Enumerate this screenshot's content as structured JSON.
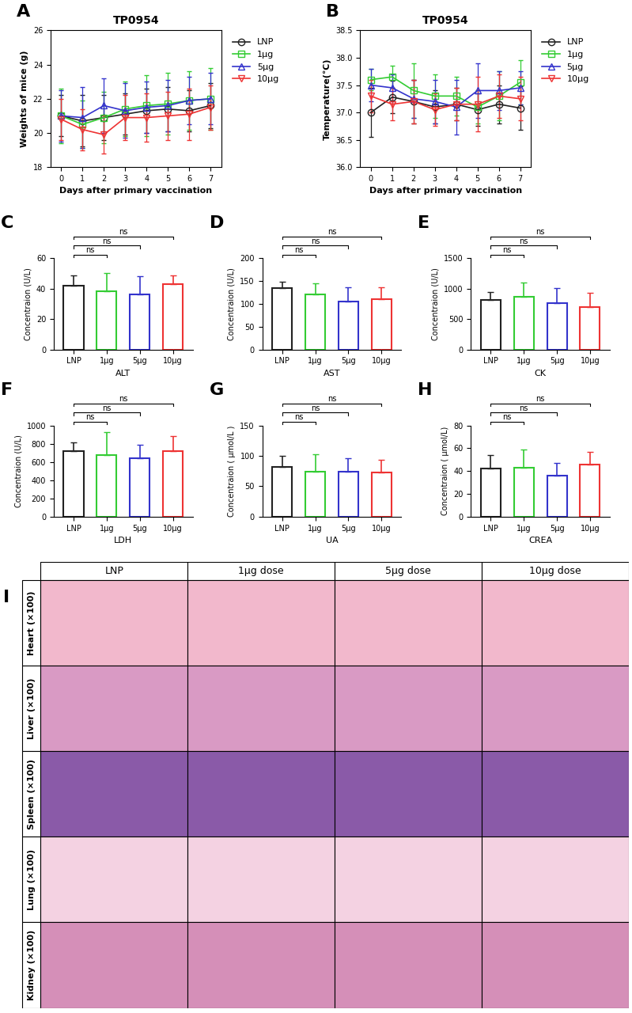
{
  "chart_data": [
    {
      "type": "line",
      "panel": "A",
      "title": "TP0954",
      "x_label": "Days after primary vaccination",
      "y_label": "Weights of mice (g)",
      "x": [
        0,
        1,
        2,
        3,
        4,
        5,
        6,
        7
      ],
      "xlim": [
        -0.5,
        7.5
      ],
      "xticks": [
        0,
        1,
        2,
        3,
        4,
        5,
        6,
        7
      ],
      "ylim": [
        18,
        26
      ],
      "yticks": [
        18,
        20,
        22,
        24,
        26
      ],
      "legend": "upper left",
      "series": [
        {
          "name": "LNP",
          "color": "#222222",
          "marker": "o",
          "values": [
            21.0,
            20.7,
            20.9,
            21.1,
            21.3,
            21.4,
            21.3,
            21.6
          ],
          "errors": [
            1.2,
            1.5,
            1.3,
            1.2,
            1.3,
            1.3,
            1.2,
            1.3
          ]
        },
        {
          "name": "1μg",
          "color": "#33cc33",
          "marker": "s",
          "values": [
            21.0,
            20.5,
            20.9,
            21.4,
            21.6,
            21.7,
            21.9,
            22.0
          ],
          "errors": [
            1.6,
            1.4,
            1.5,
            1.6,
            1.8,
            1.8,
            1.7,
            1.8
          ]
        },
        {
          "name": "5μg",
          "color": "#3333cc",
          "marker": "^",
          "values": [
            21.0,
            20.9,
            21.6,
            21.3,
            21.5,
            21.6,
            21.9,
            22.0
          ],
          "errors": [
            1.5,
            1.8,
            1.6,
            1.6,
            1.5,
            1.5,
            1.4,
            1.5
          ]
        },
        {
          "name": "10μg",
          "color": "#ee3333",
          "marker": "v",
          "values": [
            20.8,
            20.2,
            19.9,
            20.9,
            20.9,
            21.0,
            21.1,
            21.5
          ],
          "errors": [
            1.2,
            1.2,
            1.1,
            1.3,
            1.4,
            1.4,
            1.5,
            1.3
          ]
        }
      ]
    },
    {
      "type": "line",
      "panel": "B",
      "title": "TP0954",
      "x_label": "Days after primary vaccination",
      "y_label": "Temperature(℃)",
      "x": [
        0,
        1,
        2,
        3,
        4,
        5,
        6,
        7
      ],
      "xlim": [
        -0.5,
        7.5
      ],
      "xticks": [
        0,
        1,
        2,
        3,
        4,
        5,
        6,
        7
      ],
      "ylim": [
        36.0,
        38.5
      ],
      "yticks": [
        {
          "value": 36.0,
          "label": "36.0"
        },
        36.5,
        {
          "value": 37.0,
          "label": "37.0"
        },
        37.5,
        {
          "value": 38.0,
          "label": "38.0"
        },
        38.5
      ],
      "legend": "upper left",
      "series": [
        {
          "name": "LNP",
          "color": "#222222",
          "marker": "o",
          "values": [
            37.0,
            37.28,
            37.2,
            37.1,
            37.15,
            37.05,
            37.15,
            37.08
          ],
          "errors": [
            0.45,
            0.3,
            0.4,
            0.3,
            0.3,
            0.3,
            0.35,
            0.4
          ]
        },
        {
          "name": "1μg",
          "color": "#33cc33",
          "marker": "s",
          "values": [
            37.6,
            37.65,
            37.4,
            37.3,
            37.3,
            37.1,
            37.3,
            37.55
          ],
          "errors": [
            0.2,
            0.2,
            0.5,
            0.4,
            0.35,
            0.3,
            0.45,
            0.4
          ]
        },
        {
          "name": "5μg",
          "color": "#3333cc",
          "marker": "^",
          "values": [
            37.5,
            37.45,
            37.25,
            37.2,
            37.1,
            37.4,
            37.4,
            37.45
          ],
          "errors": [
            0.3,
            0.25,
            0.35,
            0.4,
            0.5,
            0.5,
            0.35,
            0.3
          ]
        },
        {
          "name": "10μg",
          "color": "#ee3333",
          "marker": "v",
          "values": [
            37.3,
            37.15,
            37.2,
            37.05,
            37.15,
            37.15,
            37.3,
            37.25
          ],
          "errors": [
            0.3,
            0.3,
            0.4,
            0.3,
            0.3,
            0.5,
            0.4,
            0.4
          ]
        }
      ]
    },
    {
      "type": "bar",
      "panel": "C",
      "x_label": "ALT",
      "y_label": "Concentraion (U/L)",
      "categories": [
        "LNP",
        "1μg",
        "5μg",
        "10μg"
      ],
      "values": [
        42,
        38.5,
        36.5,
        43
      ],
      "errors": [
        6.5,
        12,
        11.5,
        5.5
      ],
      "colors": [
        "#222222",
        "#33cc33",
        "#3333cc",
        "#ee3333"
      ],
      "ylim": [
        0,
        60
      ],
      "yticks": [
        0,
        20,
        40,
        60
      ],
      "significance": [
        {
          "from": "LNP",
          "to": "1μg",
          "label": "ns"
        },
        {
          "from": "LNP",
          "to": "5μg",
          "label": "ns"
        },
        {
          "from": "LNP",
          "to": "10μg",
          "label": "ns"
        }
      ]
    },
    {
      "type": "bar",
      "panel": "D",
      "x_label": "AST",
      "y_label": "Concentraion (U/L)",
      "categories": [
        "LNP",
        "1μg",
        "5μg",
        "10μg"
      ],
      "values": [
        135,
        120,
        106,
        110
      ],
      "errors": [
        13,
        25,
        30,
        26
      ],
      "colors": [
        "#222222",
        "#33cc33",
        "#3333cc",
        "#ee3333"
      ],
      "ylim": [
        0,
        200
      ],
      "yticks": [
        0,
        50,
        100,
        150,
        200
      ],
      "significance": [
        {
          "from": "LNP",
          "to": "1μg",
          "label": "ns"
        },
        {
          "from": "LNP",
          "to": "5μg",
          "label": "ns"
        },
        {
          "from": "LNP",
          "to": "10μg",
          "label": "ns"
        }
      ]
    },
    {
      "type": "bar",
      "panel": "E",
      "x_label": "CK",
      "y_label": "Concentraion (U/L)",
      "categories": [
        "LNP",
        "1μg",
        "5μg",
        "10μg"
      ],
      "values": [
        820,
        865,
        760,
        700
      ],
      "errors": [
        120,
        240,
        250,
        230
      ],
      "colors": [
        "#222222",
        "#33cc33",
        "#3333cc",
        "#ee3333"
      ],
      "ylim": [
        0,
        1500
      ],
      "yticks": [
        0,
        500,
        1000,
        1500
      ],
      "significance": [
        {
          "from": "LNP",
          "to": "1μg",
          "label": "ns"
        },
        {
          "from": "LNP",
          "to": "5μg",
          "label": "ns"
        },
        {
          "from": "LNP",
          "to": "10μg",
          "label": "ns"
        }
      ]
    },
    {
      "type": "bar",
      "panel": "F",
      "x_label": "LDH",
      "y_label": "Concentraion (U/L)",
      "categories": [
        "LNP",
        "1μg",
        "5μg",
        "10μg"
      ],
      "values": [
        715,
        675,
        640,
        715
      ],
      "errors": [
        95,
        250,
        150,
        170
      ],
      "colors": [
        "#222222",
        "#33cc33",
        "#3333cc",
        "#ee3333"
      ],
      "ylim": [
        0,
        1000
      ],
      "yticks": [
        0,
        200,
        400,
        600,
        800,
        1000
      ],
      "significance": [
        {
          "from": "LNP",
          "to": "1μg",
          "label": "ns"
        },
        {
          "from": "LNP",
          "to": "5μg",
          "label": "ns"
        },
        {
          "from": "LNP",
          "to": "10μg",
          "label": "ns"
        }
      ]
    },
    {
      "type": "bar",
      "panel": "G",
      "x_label": "UA",
      "y_label": "Concentraion ( μmol/L )",
      "categories": [
        "LNP",
        "1μg",
        "5μg",
        "10μg"
      ],
      "values": [
        82,
        74,
        74,
        73
      ],
      "errors": [
        18,
        29,
        22,
        21
      ],
      "colors": [
        "#222222",
        "#33cc33",
        "#3333cc",
        "#ee3333"
      ],
      "ylim": [
        0,
        150
      ],
      "yticks": [
        0,
        50,
        100,
        150
      ],
      "significance": [
        {
          "from": "LNP",
          "to": "1μg",
          "label": "ns"
        },
        {
          "from": "LNP",
          "to": "5μg",
          "label": "ns"
        },
        {
          "from": "LNP",
          "to": "10μg",
          "label": "ns"
        }
      ]
    },
    {
      "type": "bar",
      "panel": "H",
      "x_label": "CREA",
      "y_label": "Concentraion ( μmol/L)",
      "categories": [
        "LNP",
        "1μg",
        "5μg",
        "10μg"
      ],
      "values": [
        42,
        43,
        36,
        46
      ],
      "errors": [
        12,
        16,
        11,
        11
      ],
      "colors": [
        "#222222",
        "#33cc33",
        "#3333cc",
        "#ee3333"
      ],
      "ylim": [
        0,
        80
      ],
      "yticks": [
        0,
        20,
        40,
        60,
        80
      ],
      "significance": [
        {
          "from": "LNP",
          "to": "1μg",
          "label": "ns"
        },
        {
          "from": "LNP",
          "to": "5μg",
          "label": "ns"
        },
        {
          "from": "LNP",
          "to": "10μg",
          "label": "ns"
        }
      ]
    }
  ],
  "histology": {
    "panel": "I",
    "columns": [
      "LNP",
      "1μg dose",
      "5μg dose",
      "10μg dose"
    ],
    "rows": [
      "Heart (×100)",
      "Liver (×100)",
      "Spleen (×100)",
      "Lung (×100)",
      "Kidney (×100)"
    ]
  }
}
